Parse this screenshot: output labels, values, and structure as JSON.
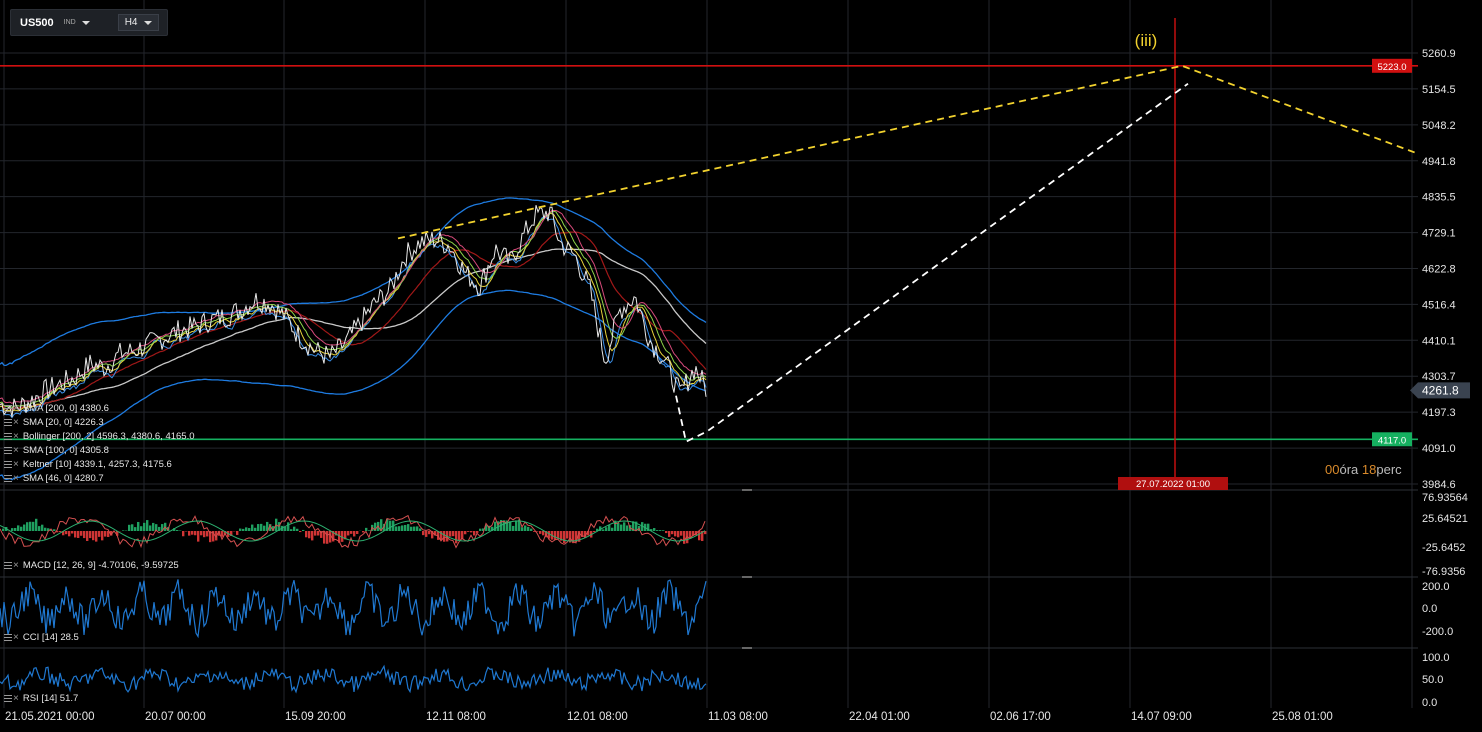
{
  "toolbar": {
    "symbol": "US500",
    "instrument_class": "IND",
    "timeframe": "H4"
  },
  "wave_label": "(iii)",
  "price_axis": {
    "ticks": [
      "5260.9",
      "5154.5",
      "5048.2",
      "4941.8",
      "4835.5",
      "4729.1",
      "4622.8",
      "4516.4",
      "4410.1",
      "4303.7",
      "4197.3",
      "4091.0",
      "3984.6"
    ],
    "tick_values": [
      5260.9,
      5154.5,
      5048.2,
      4941.8,
      4835.5,
      4729.1,
      4622.8,
      4516.4,
      4410.1,
      4303.7,
      4197.3,
      4091.0,
      3984.6
    ],
    "last_price": "4261.8",
    "resistance_label": "5223.0",
    "support_label": "4117.0"
  },
  "macd_axis": [
    "76.93564",
    "25.64521",
    "-25.6452",
    "-76.9356"
  ],
  "cci_axis": [
    "200.0",
    "0.0",
    "-200.0"
  ],
  "rsi_axis": [
    "100.0",
    "50.0",
    "0.0"
  ],
  "time_axis": [
    "21.05.2021  00:00",
    "20.07  00:00",
    "15.09  20:00",
    "12.11  08:00",
    "12.01  08:00",
    "11.03  08:00",
    "22.04  01:00",
    "02.06  17:00",
    "14.07  09:00",
    "25.08  01:00"
  ],
  "crosshair_time": "27.07.2022 01:00",
  "countdown": {
    "h": "00",
    "h_unit": "óra",
    "m": "18",
    "m_unit": "perc"
  },
  "legends": {
    "sma200": "SMA [200, 0]  4380.6",
    "sma20": "SMA [20, 0]  4226.3",
    "bollinger": "Bollinger [200, 2]  4596.3,  4380.6,  4165.0",
    "sma100": "SMA [100, 0]  4305.8",
    "keltner": "Keltner [10]  4339.1,  4257.3,  4175.6",
    "sma46": "SMA [46, 0]  4280.7",
    "macd": "MACD [12, 26, 9]  -4.70106,  -9.59725",
    "cci": "CCI [14]  28.5",
    "rsi": "RSI [14]  51.7"
  },
  "colors": {
    "resistance": "#d01010",
    "support": "#15b060",
    "last_price_tag": "#3a4350",
    "projection": "#f2d22e",
    "projection_white": "#ffffff",
    "bollinger": "#1e7be0",
    "sma200": "#c8c8c8",
    "sma100": "#a01818",
    "macd_up": "#1fa060",
    "macd_down": "#d03535",
    "cci": "#1f78d1",
    "rsi": "#1f78d1"
  },
  "chart_data": {
    "type": "line",
    "price_series_samples": [
      [
        0,
        4220
      ],
      [
        15,
        4210
      ],
      [
        30,
        4230
      ],
      [
        45,
        4260
      ],
      [
        60,
        4280
      ],
      [
        75,
        4300
      ],
      [
        90,
        4340
      ],
      [
        105,
        4330
      ],
      [
        120,
        4370
      ],
      [
        135,
        4380
      ],
      [
        150,
        4400
      ],
      [
        165,
        4420
      ],
      [
        180,
        4440
      ],
      [
        195,
        4450
      ],
      [
        210,
        4470
      ],
      [
        225,
        4480
      ],
      [
        240,
        4500
      ],
      [
        255,
        4530
      ],
      [
        270,
        4520
      ],
      [
        285,
        4480
      ],
      [
        300,
        4420
      ],
      [
        315,
        4380
      ],
      [
        330,
        4360
      ],
      [
        345,
        4400
      ],
      [
        360,
        4460
      ],
      [
        375,
        4520
      ],
      [
        390,
        4560
      ],
      [
        405,
        4660
      ],
      [
        420,
        4700
      ],
      [
        435,
        4710
      ],
      [
        450,
        4690
      ],
      [
        465,
        4610
      ],
      [
        480,
        4570
      ],
      [
        495,
        4680
      ],
      [
        510,
        4640
      ],
      [
        520,
        4700
      ],
      [
        535,
        4780
      ],
      [
        550,
        4790
      ],
      [
        560,
        4700
      ],
      [
        575,
        4660
      ],
      [
        590,
        4560
      ],
      [
        605,
        4350
      ],
      [
        620,
        4500
      ],
      [
        635,
        4540
      ],
      [
        650,
        4410
      ],
      [
        665,
        4350
      ],
      [
        680,
        4250
      ],
      [
        695,
        4330
      ],
      [
        707,
        4262
      ]
    ],
    "projection_yellow": [
      [
        398,
        4712
      ],
      [
        1182,
        5223
      ],
      [
        1415,
        4966
      ]
    ],
    "projection_white": [
      [
        676,
        4246
      ],
      [
        686,
        4110
      ],
      [
        707,
        4140
      ],
      [
        1188,
        5170
      ]
    ],
    "resistance": 5223.0,
    "support": 4117.0
  }
}
